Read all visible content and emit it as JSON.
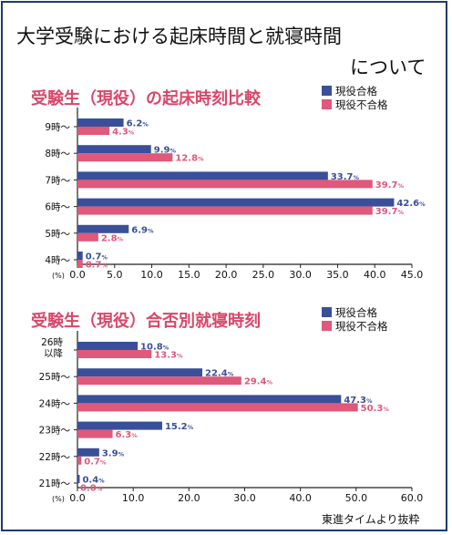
{
  "page": {
    "title_line1": "大学受験における起床時間と就寝時間",
    "title_line2": "について",
    "source": "東進タイムより抜粋"
  },
  "colors": {
    "pass": "#3a4f9a",
    "fail": "#e0587a",
    "title": "#d9476a"
  },
  "chart_data": [
    {
      "type": "bar",
      "orientation": "horizontal",
      "title": "受験生（現役）の起床時刻比較",
      "categories": [
        "9時～",
        "8時～",
        "7時～",
        "6時～",
        "5時～",
        "4時～"
      ],
      "series": [
        {
          "name": "現役合格",
          "values": [
            6.2,
            9.9,
            33.7,
            42.6,
            6.9,
            0.7
          ]
        },
        {
          "name": "現役不合格",
          "values": [
            4.3,
            12.8,
            39.7,
            39.7,
            2.8,
            0.7
          ]
        }
      ],
      "unit_label": "(%)",
      "xlim": [
        0,
        45
      ],
      "xticks": [
        "0.0",
        "5.0",
        "10.0",
        "15.0",
        "20.0",
        "25.0",
        "30.0",
        "35.0",
        "40.0",
        "45.0"
      ],
      "legend": "top-right",
      "grid": false
    },
    {
      "type": "bar",
      "orientation": "horizontal",
      "title": "受験生（現役）合否別就寝時刻",
      "categories": [
        "26時以降",
        "25時～",
        "24時～",
        "23時～",
        "22時～",
        "21時～"
      ],
      "series": [
        {
          "name": "現役合格",
          "values": [
            10.8,
            22.4,
            47.3,
            15.2,
            3.9,
            0.4
          ]
        },
        {
          "name": "現役不合格",
          "values": [
            13.3,
            29.4,
            50.3,
            6.3,
            0.7,
            0.0
          ]
        }
      ],
      "unit_label": "(%)",
      "xlim": [
        0,
        60
      ],
      "xticks": [
        "0.0",
        "10.0",
        "20.0",
        "30.0",
        "40.0",
        "50.0",
        "60.0"
      ],
      "legend": "top-right",
      "grid": false
    }
  ]
}
